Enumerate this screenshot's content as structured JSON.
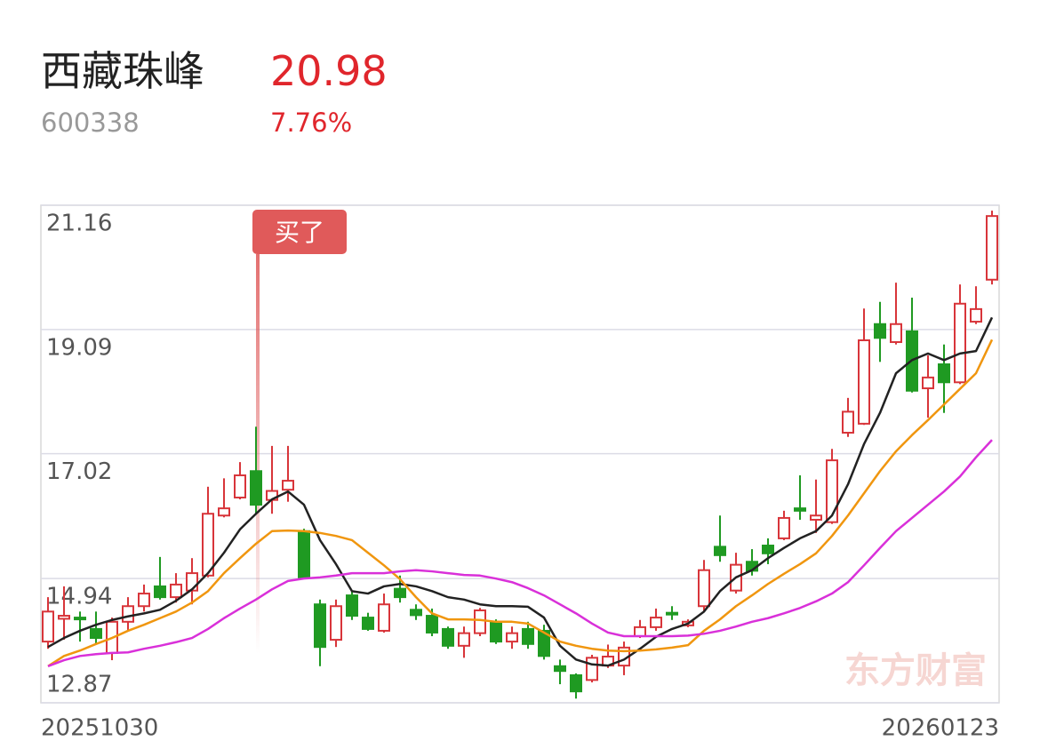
{
  "header": {
    "name": "西藏珠峰",
    "code": "600338",
    "price": "20.98",
    "change": "7.76%"
  },
  "chart_data": {
    "type": "candlestick",
    "watermark": "东方财富",
    "annotation": "买了",
    "categories": [
      "20251030",
      null,
      null,
      null,
      null,
      null,
      null,
      null,
      null,
      null,
      null,
      null,
      null,
      null,
      null,
      null,
      null,
      null,
      null,
      null,
      null,
      null,
      null,
      null,
      null,
      null,
      null,
      null,
      null,
      null,
      null,
      null,
      null,
      null,
      null,
      null,
      null,
      null,
      null,
      null,
      null,
      null,
      null,
      null,
      null,
      null,
      null,
      null,
      null,
      null,
      null,
      null,
      null,
      null,
      null,
      null,
      null,
      null,
      null,
      "20260123"
    ],
    "open": [
      13.89,
      14.27,
      14.29,
      14.1,
      13.7,
      14.22,
      14.48,
      14.81,
      14.63,
      14.74,
      14.99,
      15.99,
      16.29,
      16.73,
      16.25,
      16.42,
      15.73,
      14.51,
      13.92,
      14.66,
      14.29,
      14.07,
      14.77,
      14.42,
      14.32,
      14.1,
      13.82,
      14.03,
      14.22,
      13.89,
      14.1,
      14.07,
      13.48,
      13.33,
      13.25,
      13.49,
      13.49,
      13.98,
      14.13,
      14.37,
      14.16,
      14.48,
      15.47,
      14.74,
      15.22,
      15.49,
      15.61,
      16.11,
      15.92,
      15.88,
      17.37,
      17.52,
      19.18,
      18.88,
      19.06,
      18.11,
      18.51,
      18.21,
      19.22,
      19.92
    ],
    "high": [
      14.63,
      14.81,
      14.39,
      14.39,
      14.29,
      14.63,
      14.84,
      15.3,
      15.03,
      15.28,
      16.47,
      16.61,
      16.88,
      17.47,
      17.15,
      17.15,
      15.77,
      14.59,
      14.59,
      14.74,
      14.37,
      14.69,
      14.99,
      14.51,
      14.44,
      14.14,
      14.14,
      14.45,
      14.26,
      14.14,
      14.22,
      14.17,
      13.59,
      13.36,
      13.67,
      13.84,
      13.89,
      14.25,
      14.44,
      14.48,
      14.26,
      15.25,
      15.99,
      15.37,
      15.43,
      15.61,
      16.07,
      16.66,
      16.59,
      17.1,
      17.95,
      19.44,
      19.55,
      19.87,
      19.62,
      18.66,
      18.84,
      19.84,
      19.81,
      21.07
    ],
    "low": [
      13.77,
      13.92,
      13.89,
      13.85,
      13.58,
      14.07,
      14.39,
      14.59,
      14.54,
      14.51,
      14.96,
      15.96,
      16.26,
      16.02,
      16.02,
      16.22,
      14.96,
      13.48,
      13.8,
      14.25,
      14.07,
      14.04,
      14.54,
      14.25,
      13.98,
      13.77,
      13.62,
      13.98,
      13.85,
      13.77,
      13.77,
      13.59,
      13.18,
      12.94,
      13.21,
      13.45,
      13.33,
      13.95,
      14.07,
      14.25,
      14.13,
      14.39,
      15.22,
      14.69,
      14.99,
      15.18,
      15.58,
      15.92,
      15.7,
      15.85,
      17.3,
      17.5,
      18.55,
      18.84,
      18.04,
      17.62,
      17.7,
      18.18,
      19.18,
      19.84
    ],
    "close": [
      14.39,
      14.32,
      14.26,
      13.95,
      14.22,
      14.48,
      14.69,
      14.63,
      14.84,
      15.03,
      16.02,
      16.11,
      16.66,
      16.17,
      16.4,
      16.57,
      14.96,
      13.8,
      14.48,
      14.32,
      14.1,
      14.51,
      14.63,
      14.33,
      14.04,
      13.82,
      14.03,
      14.41,
      13.89,
      14.03,
      13.85,
      13.65,
      13.4,
      13.06,
      13.62,
      13.64,
      13.79,
      14.13,
      14.29,
      14.35,
      14.22,
      15.08,
      15.33,
      15.17,
      15.07,
      15.36,
      15.95,
      16.07,
      15.99,
      16.91,
      17.72,
      18.91,
      18.95,
      19.18,
      18.07,
      18.29,
      18.21,
      19.52,
      19.43,
      20.98
    ],
    "up_color": "#d8353a",
    "down_color": "#1f9a22",
    "lines": [
      {
        "color": "#222222",
        "values": [
          13.8,
          13.95,
          14.07,
          14.17,
          14.25,
          14.31,
          14.36,
          14.42,
          14.57,
          14.76,
          15.03,
          15.37,
          15.76,
          16.02,
          16.26,
          16.39,
          16.17,
          15.58,
          15.18,
          14.73,
          14.69,
          14.81,
          14.85,
          14.81,
          14.73,
          14.63,
          14.59,
          14.51,
          14.48,
          14.48,
          14.47,
          14.29,
          13.82,
          13.59,
          13.51,
          13.49,
          13.59,
          13.77,
          13.97,
          14.1,
          14.19,
          14.39,
          14.73,
          14.96,
          15.08,
          15.28,
          15.45,
          15.61,
          15.73,
          15.99,
          16.51,
          17.18,
          17.7,
          18.36,
          18.58,
          18.69,
          18.58,
          18.69,
          18.73,
          19.29
        ]
      },
      {
        "color": "#f0960f",
        "values": [
          13.48,
          13.65,
          13.74,
          13.85,
          13.95,
          14.07,
          14.17,
          14.28,
          14.39,
          14.54,
          14.73,
          15.03,
          15.28,
          15.52,
          15.73,
          15.74,
          15.73,
          15.7,
          15.65,
          15.58,
          15.37,
          15.16,
          14.93,
          14.63,
          14.36,
          14.26,
          14.26,
          14.25,
          14.22,
          14.22,
          14.19,
          14.04,
          13.89,
          13.82,
          13.77,
          13.74,
          13.73,
          13.74,
          13.76,
          13.79,
          13.83,
          14.07,
          14.26,
          14.48,
          14.66,
          14.85,
          15.02,
          15.18,
          15.36,
          15.65,
          15.99,
          16.36,
          16.73,
          17.06,
          17.33,
          17.58,
          17.84,
          18.1,
          18.36,
          18.92
        ]
      },
      {
        "color": "#d930d9",
        "values": [
          13.48,
          13.58,
          13.65,
          13.68,
          13.7,
          13.71,
          13.77,
          13.82,
          13.88,
          13.95,
          14.1,
          14.28,
          14.44,
          14.59,
          14.76,
          14.9,
          14.94,
          14.96,
          14.99,
          15.03,
          15.03,
          15.03,
          15.06,
          15.08,
          15.06,
          15.03,
          15.0,
          14.99,
          14.94,
          14.88,
          14.78,
          14.66,
          14.51,
          14.36,
          14.19,
          14.04,
          13.98,
          13.98,
          13.98,
          13.98,
          13.99,
          14.02,
          14.07,
          14.14,
          14.22,
          14.28,
          14.36,
          14.45,
          14.56,
          14.69,
          14.88,
          15.16,
          15.45,
          15.73,
          15.95,
          16.17,
          16.39,
          16.64,
          16.96,
          17.25
        ]
      }
    ],
    "ylim": [
      12.87,
      21.16
    ],
    "yticks": [
      12.87,
      14.94,
      17.02,
      19.09,
      21.16
    ],
    "grid": true
  }
}
